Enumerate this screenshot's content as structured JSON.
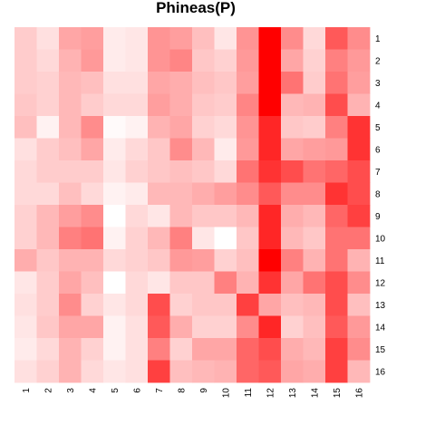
{
  "chart_data": {
    "type": "heatmap",
    "title": "Phineas(P)",
    "x_labels": [
      "1",
      "2",
      "3",
      "4",
      "5",
      "6",
      "7",
      "8",
      "9",
      "10",
      "11",
      "12",
      "13",
      "14",
      "15",
      "16"
    ],
    "y_labels": [
      "1",
      "2",
      "3",
      "4",
      "5",
      "6",
      "7",
      "8",
      "9",
      "10",
      "11",
      "12",
      "13",
      "14",
      "15",
      "16"
    ],
    "color_low": "#ffffff",
    "color_high": "#ff0000",
    "scale": [
      0,
      1
    ],
    "values": [
      [
        0.2,
        0.12,
        0.35,
        0.38,
        0.08,
        0.1,
        0.42,
        0.38,
        0.25,
        0.1,
        0.42,
        1.0,
        0.45,
        0.15,
        0.65,
        0.45
      ],
      [
        0.2,
        0.15,
        0.3,
        0.4,
        0.08,
        0.1,
        0.42,
        0.48,
        0.22,
        0.18,
        0.4,
        1.0,
        0.35,
        0.18,
        0.5,
        0.4
      ],
      [
        0.2,
        0.18,
        0.28,
        0.25,
        0.12,
        0.12,
        0.35,
        0.32,
        0.25,
        0.22,
        0.38,
        1.0,
        0.55,
        0.2,
        0.55,
        0.38
      ],
      [
        0.22,
        0.18,
        0.28,
        0.2,
        0.15,
        0.15,
        0.38,
        0.32,
        0.22,
        0.2,
        0.48,
        1.0,
        0.28,
        0.3,
        0.7,
        0.3
      ],
      [
        0.25,
        0.05,
        0.28,
        0.45,
        0.02,
        0.05,
        0.3,
        0.35,
        0.18,
        0.15,
        0.42,
        0.85,
        0.22,
        0.2,
        0.5,
        0.8
      ],
      [
        0.12,
        0.2,
        0.25,
        0.35,
        0.08,
        0.15,
        0.22,
        0.45,
        0.28,
        0.08,
        0.4,
        0.85,
        0.35,
        0.38,
        0.4,
        0.8
      ],
      [
        0.15,
        0.2,
        0.2,
        0.2,
        0.1,
        0.18,
        0.22,
        0.25,
        0.22,
        0.15,
        0.55,
        0.8,
        0.7,
        0.55,
        0.6,
        0.7
      ],
      [
        0.15,
        0.15,
        0.25,
        0.15,
        0.05,
        0.08,
        0.28,
        0.28,
        0.32,
        0.38,
        0.45,
        0.65,
        0.45,
        0.45,
        0.8,
        0.7
      ],
      [
        0.18,
        0.28,
        0.38,
        0.45,
        0.0,
        0.15,
        0.1,
        0.28,
        0.22,
        0.22,
        0.28,
        0.85,
        0.32,
        0.28,
        0.6,
        0.75
      ],
      [
        0.18,
        0.28,
        0.5,
        0.55,
        0.05,
        0.18,
        0.28,
        0.5,
        0.1,
        0.0,
        0.22,
        0.85,
        0.28,
        0.22,
        0.55,
        0.55
      ],
      [
        0.32,
        0.22,
        0.3,
        0.3,
        0.15,
        0.18,
        0.22,
        0.4,
        0.38,
        0.18,
        0.25,
        1.0,
        0.5,
        0.3,
        0.55,
        0.3
      ],
      [
        0.1,
        0.2,
        0.35,
        0.25,
        0.0,
        0.15,
        0.1,
        0.22,
        0.22,
        0.5,
        0.3,
        0.8,
        0.35,
        0.55,
        0.7,
        0.45
      ],
      [
        0.12,
        0.2,
        0.45,
        0.18,
        0.1,
        0.15,
        0.7,
        0.18,
        0.22,
        0.22,
        0.75,
        0.35,
        0.25,
        0.28,
        0.7,
        0.25
      ],
      [
        0.1,
        0.22,
        0.35,
        0.35,
        0.05,
        0.12,
        0.65,
        0.32,
        0.18,
        0.18,
        0.45,
        0.85,
        0.18,
        0.25,
        0.65,
        0.4
      ],
      [
        0.08,
        0.15,
        0.3,
        0.18,
        0.05,
        0.12,
        0.5,
        0.18,
        0.35,
        0.35,
        0.6,
        0.7,
        0.32,
        0.28,
        0.75,
        0.45
      ],
      [
        0.12,
        0.18,
        0.3,
        0.15,
        0.1,
        0.12,
        0.75,
        0.25,
        0.28,
        0.3,
        0.6,
        0.65,
        0.35,
        0.32,
        0.75,
        0.28
      ]
    ]
  }
}
